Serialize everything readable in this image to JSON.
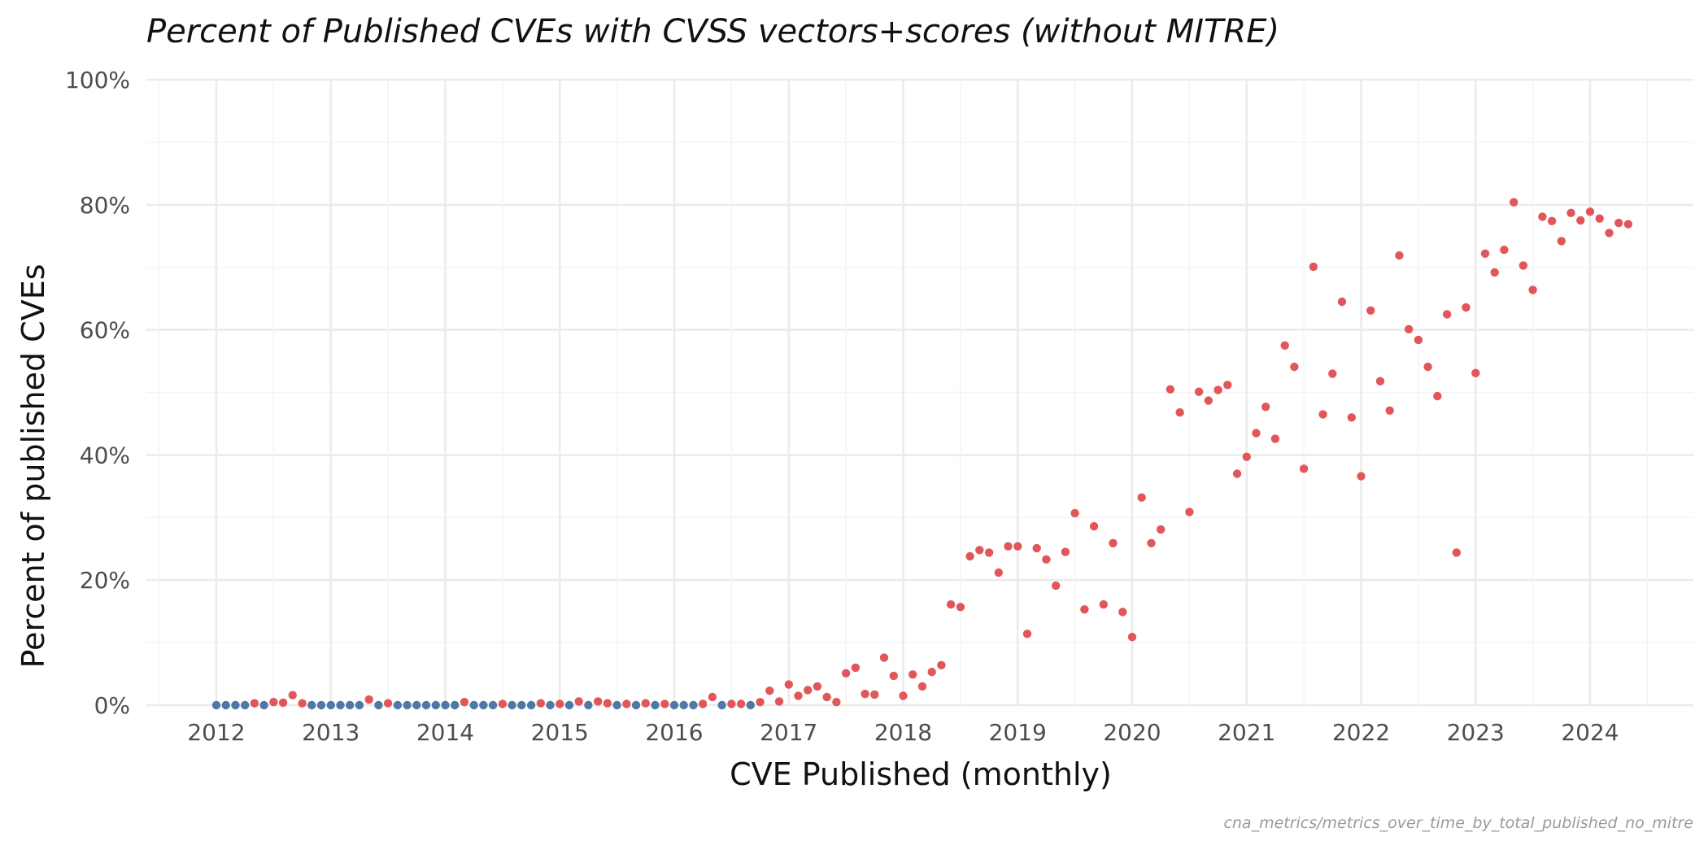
{
  "chart_data": {
    "type": "scatter",
    "title": "Percent of Published CVEs with CVSS vectors+scores (without MITRE)",
    "xlabel": "CVE Published (monthly)",
    "ylabel": "Percent of published CVEs",
    "caption": "cna_metrics/metrics_over_time_by_total_published_no_mitre",
    "x_tick_labels": [
      "2012",
      "2013",
      "2014",
      "2015",
      "2016",
      "2017",
      "2018",
      "2019",
      "2020",
      "2021",
      "2022",
      "2023",
      "2024"
    ],
    "y_tick_labels": [
      "0%",
      "20%",
      "40%",
      "60%",
      "80%",
      "100%"
    ],
    "xlim": [
      "2011-07",
      "2024-12"
    ],
    "ylim": [
      0,
      100
    ],
    "grid": true,
    "legend": "none",
    "colors": {
      "positive": "#E15759",
      "zero": "#4E79A7",
      "grid": "#ebebeb"
    },
    "points": [
      [
        "2012-01",
        0
      ],
      [
        "2012-02",
        0
      ],
      [
        "2012-03",
        0
      ],
      [
        "2012-04",
        0
      ],
      [
        "2012-05",
        0.3
      ],
      [
        "2012-06",
        0
      ],
      [
        "2012-07",
        0.5
      ],
      [
        "2012-08",
        0.4
      ],
      [
        "2012-09",
        1.6
      ],
      [
        "2012-10",
        0.3
      ],
      [
        "2012-11",
        0
      ],
      [
        "2012-12",
        0
      ],
      [
        "2013-01",
        0
      ],
      [
        "2013-02",
        0
      ],
      [
        "2013-03",
        0
      ],
      [
        "2013-04",
        0
      ],
      [
        "2013-05",
        0.9
      ],
      [
        "2013-06",
        0
      ],
      [
        "2013-07",
        0.3
      ],
      [
        "2013-08",
        0
      ],
      [
        "2013-09",
        0
      ],
      [
        "2013-10",
        0
      ],
      [
        "2013-11",
        0
      ],
      [
        "2013-12",
        0
      ],
      [
        "2014-01",
        0
      ],
      [
        "2014-02",
        0
      ],
      [
        "2014-03",
        0.5
      ],
      [
        "2014-04",
        0
      ],
      [
        "2014-05",
        0
      ],
      [
        "2014-06",
        0
      ],
      [
        "2014-07",
        0.2
      ],
      [
        "2014-08",
        0
      ],
      [
        "2014-09",
        0
      ],
      [
        "2014-10",
        0
      ],
      [
        "2014-11",
        0.3
      ],
      [
        "2014-12",
        0
      ],
      [
        "2015-01",
        0.2
      ],
      [
        "2015-02",
        0
      ],
      [
        "2015-03",
        0.6
      ],
      [
        "2015-04",
        0
      ],
      [
        "2015-05",
        0.6
      ],
      [
        "2015-06",
        0.3
      ],
      [
        "2015-07",
        0
      ],
      [
        "2015-08",
        0.2
      ],
      [
        "2015-09",
        0
      ],
      [
        "2015-10",
        0.3
      ],
      [
        "2015-11",
        0
      ],
      [
        "2015-12",
        0.2
      ],
      [
        "2016-01",
        0
      ],
      [
        "2016-02",
        0
      ],
      [
        "2016-03",
        0
      ],
      [
        "2016-04",
        0.2
      ],
      [
        "2016-05",
        1.3
      ],
      [
        "2016-06",
        0
      ],
      [
        "2016-07",
        0.2
      ],
      [
        "2016-08",
        0.2
      ],
      [
        "2016-09",
        0
      ],
      [
        "2016-10",
        0.5
      ],
      [
        "2016-11",
        2.3
      ],
      [
        "2016-12",
        0.6
      ],
      [
        "2017-01",
        3.3
      ],
      [
        "2017-02",
        1.5
      ],
      [
        "2017-03",
        2.4
      ],
      [
        "2017-04",
        3
      ],
      [
        "2017-05",
        1.3
      ],
      [
        "2017-06",
        0.5
      ],
      [
        "2017-07",
        5.1
      ],
      [
        "2017-08",
        6
      ],
      [
        "2017-09",
        1.8
      ],
      [
        "2017-10",
        1.7
      ],
      [
        "2017-11",
        7.6
      ],
      [
        "2017-12",
        4.7
      ],
      [
        "2018-01",
        1.5
      ],
      [
        "2018-02",
        4.9
      ],
      [
        "2018-03",
        3
      ],
      [
        "2018-04",
        5.3
      ],
      [
        "2018-05",
        6.4
      ],
      [
        "2018-06",
        16.1
      ],
      [
        "2018-07",
        15.7
      ],
      [
        "2018-08",
        23.8
      ],
      [
        "2018-09",
        24.8
      ],
      [
        "2018-10",
        24.4
      ],
      [
        "2018-11",
        21.2
      ],
      [
        "2018-12",
        25.4
      ],
      [
        "2019-01",
        25.4
      ],
      [
        "2019-02",
        11.4
      ],
      [
        "2019-03",
        25.1
      ],
      [
        "2019-04",
        23.3
      ],
      [
        "2019-05",
        19.1
      ],
      [
        "2019-06",
        24.5
      ],
      [
        "2019-07",
        30.7
      ],
      [
        "2019-08",
        15.3
      ],
      [
        "2019-09",
        28.6
      ],
      [
        "2019-10",
        16.1
      ],
      [
        "2019-11",
        25.9
      ],
      [
        "2019-12",
        14.9
      ],
      [
        "2020-01",
        10.9
      ],
      [
        "2020-02",
        33.2
      ],
      [
        "2020-03",
        25.9
      ],
      [
        "2020-04",
        28.1
      ],
      [
        "2020-05",
        50.5
      ],
      [
        "2020-06",
        46.8
      ],
      [
        "2020-07",
        30.9
      ],
      [
        "2020-08",
        50.1
      ],
      [
        "2020-09",
        48.7
      ],
      [
        "2020-10",
        50.4
      ],
      [
        "2020-11",
        51.2
      ],
      [
        "2020-12",
        37
      ],
      [
        "2021-01",
        39.7
      ],
      [
        "2021-02",
        43.5
      ],
      [
        "2021-03",
        47.7
      ],
      [
        "2021-04",
        42.6
      ],
      [
        "2021-05",
        57.5
      ],
      [
        "2021-06",
        54.1
      ],
      [
        "2021-07",
        37.8
      ],
      [
        "2021-08",
        70.1
      ],
      [
        "2021-09",
        46.5
      ],
      [
        "2021-10",
        53
      ],
      [
        "2021-11",
        64.5
      ],
      [
        "2021-12",
        46
      ],
      [
        "2022-01",
        36.6
      ],
      [
        "2022-02",
        63.1
      ],
      [
        "2022-03",
        51.8
      ],
      [
        "2022-04",
        47.1
      ],
      [
        "2022-05",
        71.9
      ],
      [
        "2022-06",
        60.1
      ],
      [
        "2022-07",
        58.4
      ],
      [
        "2022-08",
        54.1
      ],
      [
        "2022-09",
        49.4
      ],
      [
        "2022-10",
        62.5
      ],
      [
        "2022-11",
        24.4
      ],
      [
        "2022-12",
        63.6
      ],
      [
        "2023-01",
        53.1
      ],
      [
        "2023-02",
        72.2
      ],
      [
        "2023-03",
        69.2
      ],
      [
        "2023-04",
        72.8
      ],
      [
        "2023-05",
        80.4
      ],
      [
        "2023-06",
        70.3
      ],
      [
        "2023-07",
        66.4
      ],
      [
        "2023-08",
        78.1
      ],
      [
        "2023-09",
        77.4
      ],
      [
        "2023-10",
        74.2
      ],
      [
        "2023-11",
        78.7
      ],
      [
        "2023-12",
        77.5
      ],
      [
        "2024-01",
        78.9
      ],
      [
        "2024-02",
        77.8
      ],
      [
        "2024-03",
        75.5
      ],
      [
        "2024-04",
        77.1
      ],
      [
        "2024-05",
        76.9
      ]
    ]
  }
}
